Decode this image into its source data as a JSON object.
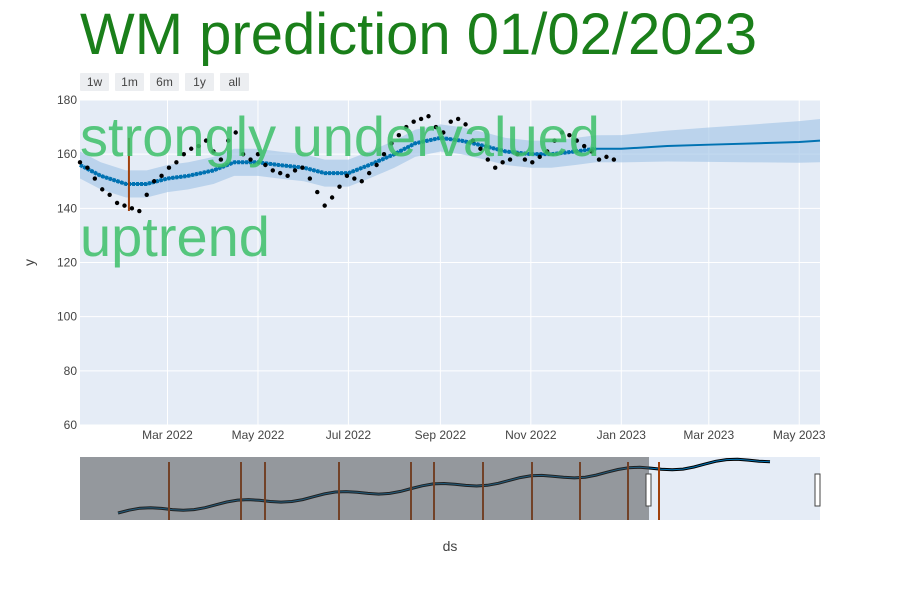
{
  "title": "WM prediction 01/02/2023",
  "range_buttons": [
    "1w",
    "1m",
    "6m",
    "1y",
    "all"
  ],
  "annotations": [
    "strongly undervalued",
    "uptrend"
  ],
  "colors": {
    "title": "#1a7f1a",
    "annotation": "#3cc068",
    "plot_bg": "#e5ecf6",
    "forecast_line": "#0072b2",
    "forecast_band": "#a9c9e8",
    "actual_points": "#000000",
    "changepoint": "#a0410d"
  },
  "chart_data": {
    "type": "line",
    "xlabel": "ds",
    "ylabel": "y",
    "ylim": [
      60,
      180
    ],
    "x_ticks": [
      "Mar 2022",
      "May 2022",
      "Jul 2022",
      "Sep 2022",
      "Nov 2022",
      "Jan 2023",
      "Mar 2023",
      "May 2023"
    ],
    "y_ticks": [
      60,
      80,
      100,
      120,
      140,
      160,
      180
    ],
    "x_range": [
      "2022-01-01",
      "2023-05-15"
    ],
    "forecast_start": "2022-12-31",
    "series": [
      {
        "name": "actual",
        "points": [
          [
            "2022-01-01",
            157
          ],
          [
            "2022-01-06",
            155
          ],
          [
            "2022-01-11",
            151
          ],
          [
            "2022-01-16",
            147
          ],
          [
            "2022-01-21",
            145
          ],
          [
            "2022-01-26",
            142
          ],
          [
            "2022-01-31",
            141
          ],
          [
            "2022-02-05",
            140
          ],
          [
            "2022-02-10",
            139
          ],
          [
            "2022-02-15",
            145
          ],
          [
            "2022-02-20",
            150
          ],
          [
            "2022-02-25",
            152
          ],
          [
            "2022-03-02",
            155
          ],
          [
            "2022-03-07",
            157
          ],
          [
            "2022-03-12",
            160
          ],
          [
            "2022-03-17",
            162
          ],
          [
            "2022-03-22",
            163
          ],
          [
            "2022-03-27",
            165
          ],
          [
            "2022-04-01",
            161
          ],
          [
            "2022-04-06",
            158
          ],
          [
            "2022-04-11",
            165
          ],
          [
            "2022-04-16",
            168
          ],
          [
            "2022-04-21",
            160
          ],
          [
            "2022-04-26",
            158
          ],
          [
            "2022-05-01",
            160
          ],
          [
            "2022-05-06",
            156
          ],
          [
            "2022-05-11",
            154
          ],
          [
            "2022-05-16",
            153
          ],
          [
            "2022-05-21",
            152
          ],
          [
            "2022-05-26",
            154
          ],
          [
            "2022-05-31",
            155
          ],
          [
            "2022-06-05",
            151
          ],
          [
            "2022-06-10",
            146
          ],
          [
            "2022-06-15",
            141
          ],
          [
            "2022-06-20",
            144
          ],
          [
            "2022-06-25",
            148
          ],
          [
            "2022-06-30",
            152
          ],
          [
            "2022-07-05",
            151
          ],
          [
            "2022-07-10",
            150
          ],
          [
            "2022-07-15",
            153
          ],
          [
            "2022-07-20",
            156
          ],
          [
            "2022-07-25",
            160
          ],
          [
            "2022-07-30",
            164
          ],
          [
            "2022-08-04",
            167
          ],
          [
            "2022-08-09",
            170
          ],
          [
            "2022-08-14",
            172
          ],
          [
            "2022-08-19",
            173
          ],
          [
            "2022-08-24",
            174
          ],
          [
            "2022-08-29",
            170
          ],
          [
            "2022-09-03",
            168
          ],
          [
            "2022-09-08",
            172
          ],
          [
            "2022-09-13",
            173
          ],
          [
            "2022-09-18",
            171
          ],
          [
            "2022-09-23",
            165
          ],
          [
            "2022-09-28",
            162
          ],
          [
            "2022-10-03",
            158
          ],
          [
            "2022-10-08",
            155
          ],
          [
            "2022-10-13",
            157
          ],
          [
            "2022-10-18",
            158
          ],
          [
            "2022-10-23",
            160
          ],
          [
            "2022-10-28",
            158
          ],
          [
            "2022-11-02",
            157
          ],
          [
            "2022-11-07",
            159
          ],
          [
            "2022-11-12",
            161
          ],
          [
            "2022-11-17",
            165
          ],
          [
            "2022-11-22",
            168
          ],
          [
            "2022-11-27",
            167
          ],
          [
            "2022-12-02",
            165
          ],
          [
            "2022-12-07",
            163
          ],
          [
            "2022-12-12",
            161
          ],
          [
            "2022-12-17",
            158
          ],
          [
            "2022-12-22",
            159
          ],
          [
            "2022-12-27",
            158
          ]
        ]
      },
      {
        "name": "forecast",
        "points": [
          [
            "2022-01-01",
            156
          ],
          [
            "2022-01-15",
            152
          ],
          [
            "2022-02-01",
            149
          ],
          [
            "2022-02-15",
            149
          ],
          [
            "2022-03-01",
            151
          ],
          [
            "2022-03-15",
            152
          ],
          [
            "2022-04-01",
            154
          ],
          [
            "2022-04-15",
            157
          ],
          [
            "2022-05-01",
            157
          ],
          [
            "2022-05-15",
            156
          ],
          [
            "2022-06-01",
            155
          ],
          [
            "2022-06-15",
            153
          ],
          [
            "2022-07-01",
            153
          ],
          [
            "2022-07-15",
            156
          ],
          [
            "2022-08-01",
            160
          ],
          [
            "2022-08-15",
            164
          ],
          [
            "2022-09-01",
            166
          ],
          [
            "2022-09-15",
            165
          ],
          [
            "2022-10-01",
            163
          ],
          [
            "2022-10-15",
            161
          ],
          [
            "2022-11-01",
            160
          ],
          [
            "2022-11-15",
            160
          ],
          [
            "2022-12-01",
            161
          ],
          [
            "2022-12-15",
            162
          ],
          [
            "2023-01-01",
            162
          ],
          [
            "2023-02-01",
            163
          ],
          [
            "2023-03-01",
            163.5
          ],
          [
            "2023-04-01",
            164
          ],
          [
            "2023-05-01",
            164.5
          ],
          [
            "2023-05-15",
            165
          ]
        ],
        "band_halfwidth_in_sample": 5,
        "band_halfwidth_end": 8
      }
    ],
    "changepoints": [
      {
        "x": "2022-02-03",
        "y_low": 139,
        "y_high": 166
      }
    ],
    "range_slider": {
      "selected_start": "2022-01-01",
      "selected_end": "2023-05-15"
    }
  }
}
